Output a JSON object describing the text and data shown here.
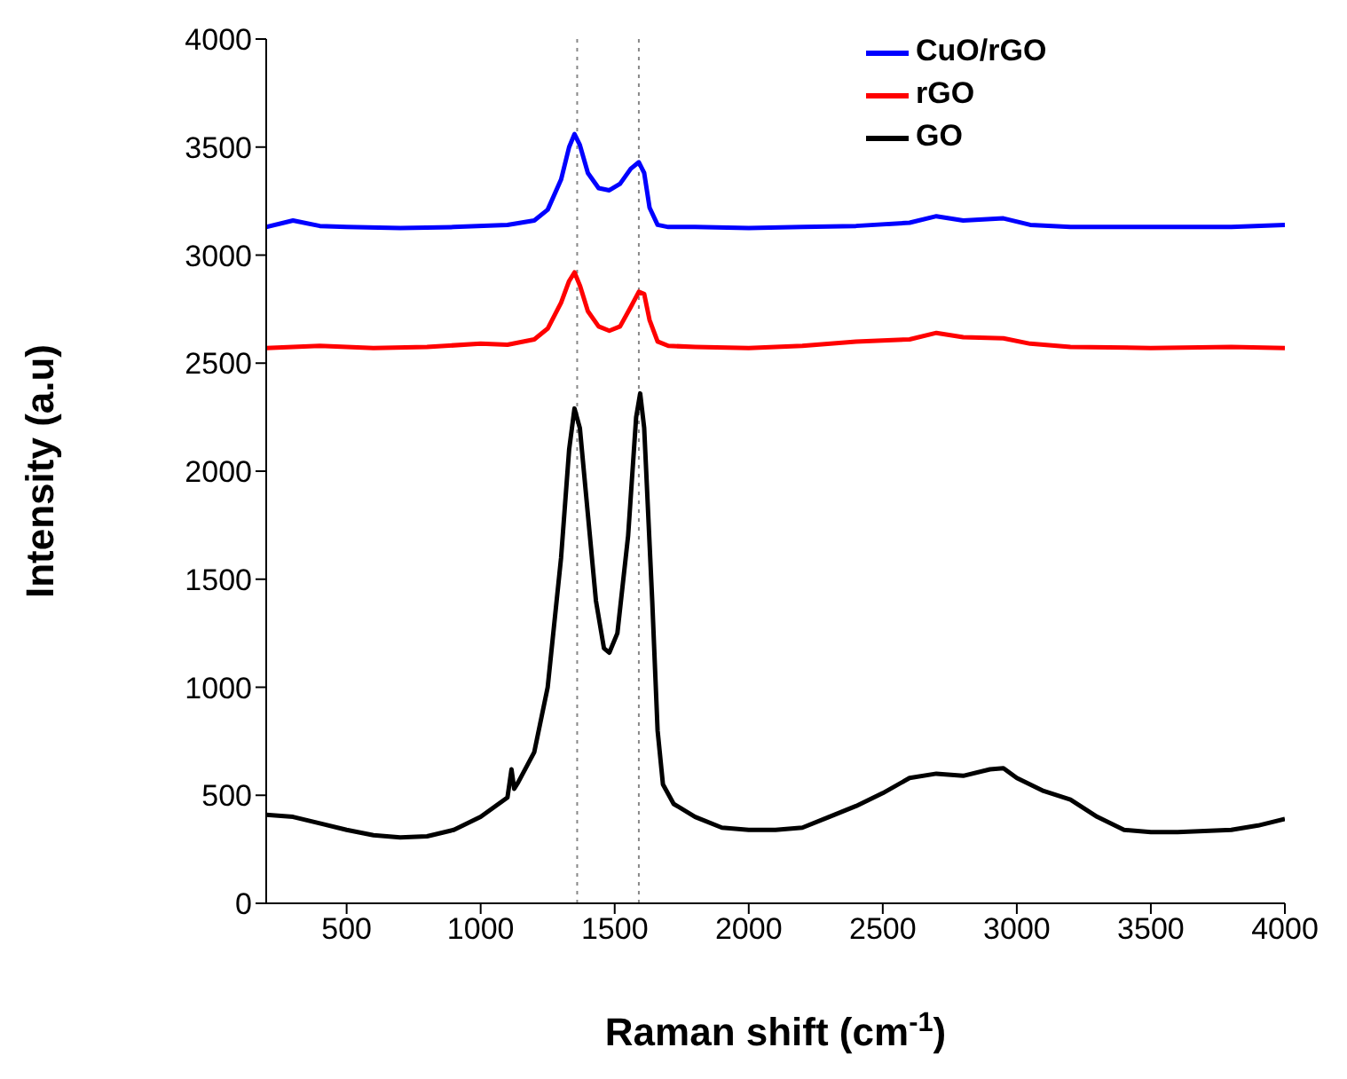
{
  "chart_data": {
    "type": "line",
    "xlabel": "Raman shift (cm$^{-1}$)",
    "ylabel": "Intensity (a.u)",
    "xlim": [
      200,
      4000
    ],
    "ylim": [
      0,
      4000
    ],
    "xticks": [
      500,
      1000,
      1500,
      2000,
      2500,
      3000,
      3500,
      4000
    ],
    "yticks": [
      0,
      500,
      1000,
      1500,
      2000,
      2500,
      3000,
      3500,
      4000
    ],
    "grid": false,
    "legend": "top right",
    "marker": "none",
    "line_style": "solid",
    "ref_lines": [
      {
        "axis": "x",
        "value": 1360,
        "color": "#888888",
        "line_style": "dotted"
      },
      {
        "axis": "x",
        "value": 1590,
        "color": "#888888",
        "line_style": "dotted"
      }
    ],
    "series": [
      {
        "name": "CuO/rGO",
        "color": "#0000ff",
        "x": [
          200,
          300,
          400,
          500,
          700,
          900,
          1100,
          1200,
          1250,
          1300,
          1330,
          1350,
          1370,
          1400,
          1440,
          1480,
          1520,
          1560,
          1590,
          1610,
          1630,
          1660,
          1700,
          1800,
          2000,
          2200,
          2400,
          2600,
          2700,
          2800,
          2950,
          3050,
          3200,
          3500,
          3800,
          4000
        ],
        "values": [
          3130,
          3160,
          3135,
          3130,
          3125,
          3130,
          3140,
          3160,
          3210,
          3350,
          3500,
          3560,
          3510,
          3380,
          3310,
          3300,
          3330,
          3400,
          3430,
          3380,
          3220,
          3140,
          3130,
          3130,
          3125,
          3130,
          3135,
          3150,
          3180,
          3160,
          3170,
          3140,
          3130,
          3130,
          3130,
          3140
        ]
      },
      {
        "name": "rGO",
        "color": "#ff0000",
        "x": [
          200,
          400,
          600,
          800,
          1000,
          1100,
          1200,
          1250,
          1300,
          1330,
          1350,
          1370,
          1400,
          1440,
          1480,
          1520,
          1560,
          1590,
          1610,
          1630,
          1660,
          1700,
          1800,
          2000,
          2200,
          2400,
          2600,
          2700,
          2800,
          2950,
          3050,
          3200,
          3500,
          3800,
          4000
        ],
        "values": [
          2570,
          2580,
          2570,
          2575,
          2590,
          2585,
          2610,
          2660,
          2780,
          2880,
          2920,
          2860,
          2740,
          2670,
          2650,
          2670,
          2760,
          2830,
          2820,
          2700,
          2600,
          2580,
          2575,
          2570,
          2580,
          2600,
          2610,
          2640,
          2620,
          2615,
          2590,
          2575,
          2570,
          2575,
          2570
        ]
      },
      {
        "name": "GO",
        "color": "#000000",
        "x": [
          200,
          300,
          400,
          500,
          600,
          700,
          800,
          900,
          1000,
          1100,
          1115,
          1125,
          1140,
          1200,
          1250,
          1300,
          1330,
          1350,
          1370,
          1400,
          1430,
          1460,
          1480,
          1510,
          1550,
          1580,
          1595,
          1610,
          1640,
          1660,
          1680,
          1720,
          1800,
          1900,
          2000,
          2100,
          2200,
          2300,
          2400,
          2500,
          2600,
          2700,
          2800,
          2900,
          2950,
          3000,
          3100,
          3200,
          3300,
          3400,
          3500,
          3600,
          3700,
          3800,
          3900,
          4000
        ],
        "values": [
          410,
          400,
          370,
          340,
          315,
          305,
          310,
          340,
          400,
          490,
          620,
          530,
          560,
          700,
          1000,
          1600,
          2100,
          2290,
          2200,
          1800,
          1400,
          1180,
          1160,
          1250,
          1700,
          2250,
          2360,
          2200,
          1400,
          800,
          550,
          460,
          400,
          350,
          340,
          340,
          350,
          400,
          450,
          510,
          580,
          600,
          590,
          620,
          625,
          580,
          520,
          480,
          400,
          340,
          330,
          330,
          335,
          340,
          360,
          390
        ]
      }
    ]
  }
}
